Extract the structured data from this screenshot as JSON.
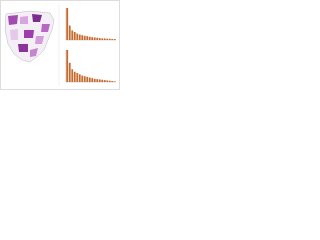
{
  "chart_data": [
    {
      "type": "bar",
      "color": "#c8692a",
      "categories": [
        null,
        null,
        null,
        null,
        null,
        null,
        null,
        null,
        null,
        null,
        null,
        null,
        null,
        null,
        null,
        null,
        null,
        null,
        null,
        null
      ],
      "values": [
        100,
        45,
        30,
        25,
        20,
        17,
        15,
        13,
        12,
        10,
        9,
        8,
        7,
        6,
        5,
        5,
        4,
        4,
        3,
        3
      ],
      "ylim": [
        0,
        100
      ]
    },
    {
      "type": "bar",
      "color": "#c8692a",
      "categories": [
        null,
        null,
        null,
        null,
        null,
        null,
        null,
        null,
        null,
        null,
        null,
        null,
        null,
        null,
        null,
        null,
        null,
        null,
        null,
        null
      ],
      "values": [
        100,
        60,
        40,
        32,
        28,
        24,
        20,
        18,
        16,
        14,
        12,
        10,
        9,
        8,
        7,
        6,
        5,
        4,
        3,
        2
      ],
      "ylim": [
        0,
        100
      ]
    }
  ]
}
